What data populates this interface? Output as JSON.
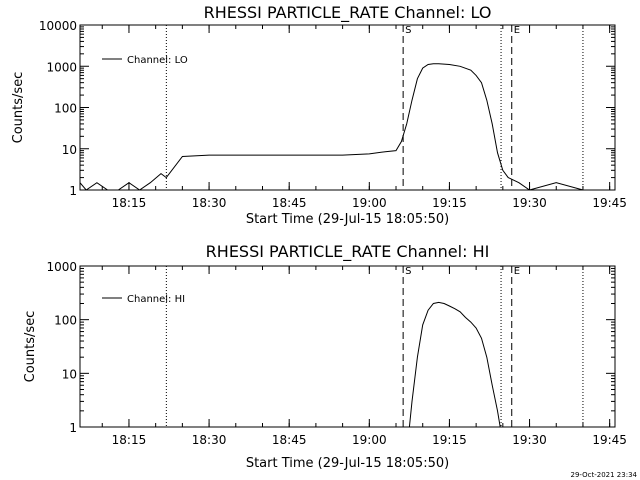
{
  "footer": {
    "timestamp": "29-Oct-2021 23:34"
  },
  "chart_data": [
    {
      "type": "line",
      "title": "RHESSI PARTICLE_RATE Channel: LO",
      "xlabel": "Start Time (29-Jul-15 18:05:50)",
      "ylabel": "Counts/sec",
      "yscale": "log",
      "grid": false,
      "legend_position": "top-left",
      "xlim": [
        "18:05:50",
        "19:46:00"
      ],
      "ylim": [
        1,
        10000
      ],
      "x_ticks": [
        "18:15",
        "18:30",
        "18:45",
        "19:00",
        "19:15",
        "19:30",
        "19:45"
      ],
      "y_ticks": [
        "1",
        "10",
        "100",
        "1000",
        "10000"
      ],
      "markers": [
        {
          "time": "18:22:00",
          "style": "dotted",
          "label": ""
        },
        {
          "time": "19:06:20",
          "style": "dashed",
          "label": "S"
        },
        {
          "time": "19:24:40",
          "style": "dotted",
          "label": ""
        },
        {
          "time": "19:26:40",
          "style": "dashed",
          "label": "E"
        },
        {
          "time": "19:40:00",
          "style": "dotted",
          "label": ""
        }
      ],
      "series": [
        {
          "name": "Channel: LO",
          "x": [
            "18:05:50",
            "18:07:00",
            "18:09:00",
            "18:11:00",
            "18:13:00",
            "18:15:00",
            "18:17:00",
            "18:19:00",
            "18:21:00",
            "18:22:00",
            "18:25:00",
            "18:30:00",
            "18:35:00",
            "18:40:00",
            "18:45:00",
            "18:50:00",
            "18:55:00",
            "19:00:00",
            "19:03:00",
            "19:05:00",
            "19:06:00",
            "19:07:00",
            "19:08:00",
            "19:09:00",
            "19:10:00",
            "19:11:00",
            "19:12:00",
            "19:13:00",
            "19:15:00",
            "19:17:00",
            "19:19:00",
            "19:20:00",
            "19:21:00",
            "19:22:00",
            "19:23:00",
            "19:24:00",
            "19:25:00",
            "19:26:00",
            "19:28:00",
            "19:30:00",
            "19:35:00",
            "19:40:00"
          ],
          "y": [
            1.5,
            1,
            1.5,
            1,
            1,
            1.5,
            1,
            1.5,
            2.5,
            2,
            6.5,
            7,
            7,
            7,
            7,
            7,
            7,
            7.5,
            8.5,
            9,
            15,
            40,
            150,
            500,
            900,
            1100,
            1150,
            1150,
            1100,
            1000,
            800,
            600,
            400,
            150,
            40,
            8,
            3,
            2,
            1.5,
            1,
            1.5,
            1
          ]
        }
      ]
    },
    {
      "type": "line",
      "title": "RHESSI PARTICLE_RATE Channel: HI",
      "xlabel": "Start Time (29-Jul-15 18:05:50)",
      "ylabel": "Counts/sec",
      "yscale": "log",
      "grid": false,
      "legend_position": "top-left",
      "xlim": [
        "18:05:50",
        "19:46:00"
      ],
      "ylim": [
        1,
        1000
      ],
      "x_ticks": [
        "18:15",
        "18:30",
        "18:45",
        "19:00",
        "19:15",
        "19:30",
        "19:45"
      ],
      "y_ticks": [
        "1",
        "10",
        "100",
        "1000"
      ],
      "markers": [
        {
          "time": "18:22:00",
          "style": "dotted",
          "label": ""
        },
        {
          "time": "19:06:20",
          "style": "dashed",
          "label": "S"
        },
        {
          "time": "19:24:40",
          "style": "dotted",
          "label": ""
        },
        {
          "time": "19:26:40",
          "style": "dashed",
          "label": "E"
        },
        {
          "time": "19:40:00",
          "style": "dotted",
          "label": ""
        }
      ],
      "series": [
        {
          "name": "Channel: HI",
          "x": [
            "19:07:30",
            "19:08:00",
            "19:09:00",
            "19:10:00",
            "19:11:00",
            "19:12:00",
            "19:13:00",
            "19:14:00",
            "19:15:00",
            "19:16:00",
            "19:17:00",
            "19:18:00",
            "19:19:00",
            "19:20:00",
            "19:21:00",
            "19:22:00",
            "19:23:00",
            "19:24:00",
            "19:24:30"
          ],
          "y": [
            1,
            3,
            20,
            80,
            150,
            200,
            210,
            200,
            180,
            160,
            140,
            110,
            90,
            70,
            45,
            20,
            6,
            2,
            1
          ]
        }
      ]
    }
  ]
}
